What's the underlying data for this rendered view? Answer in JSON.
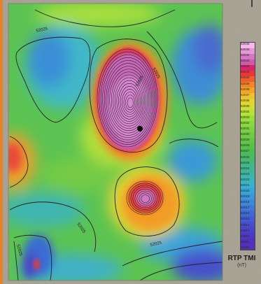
{
  "map": {
    "contour_labels": [
      "52025",
      "52025",
      "52025",
      "52025",
      "52025",
      "52025"
    ],
    "survey_marker": "black-dot"
  },
  "legend": {
    "title": "RTP TMI",
    "unit": "(nT)",
    "tick_labels": [
      "52046",
      "52045",
      "52044",
      "52043",
      "52042",
      "52041",
      "52040",
      "52039",
      "52038",
      "52037",
      "52036",
      "52035",
      "52034",
      "52033",
      "52032",
      "52031",
      "52030",
      "52029",
      "52028",
      "52027",
      "52026",
      "52025",
      "52024",
      "52023",
      "52022",
      "52021",
      "52020",
      "52019",
      "52018",
      "52017",
      "52016",
      "52015",
      "52014",
      "52013",
      "52012",
      "52011",
      "52010"
    ],
    "colors": [
      "#f4b8ec",
      "#e496d6",
      "#d377c2",
      "#ca5caa",
      "#d8266a",
      "#e8373c",
      "#ef5c2e",
      "#f28626",
      "#f3a427",
      "#f0c12e",
      "#e4d431",
      "#cfdd35",
      "#b6e23a",
      "#9ddc3d",
      "#8ad73f",
      "#7dd141",
      "#6fcb43",
      "#62c545",
      "#55c147",
      "#4cbd55",
      "#46ba68",
      "#42b87c",
      "#40b690",
      "#3fb5a4",
      "#3cb4b8",
      "#39b1cb",
      "#37a6d6",
      "#3a97d8",
      "#3d88d8",
      "#3f7ad6",
      "#4069d3",
      "#435bd1",
      "#474dcd",
      "#4a42c8",
      "#4d38c2",
      "#5130bd",
      "#5530b8"
    ]
  },
  "frame": {
    "accent_left": "#e6822a",
    "background": "#a39d8f"
  }
}
